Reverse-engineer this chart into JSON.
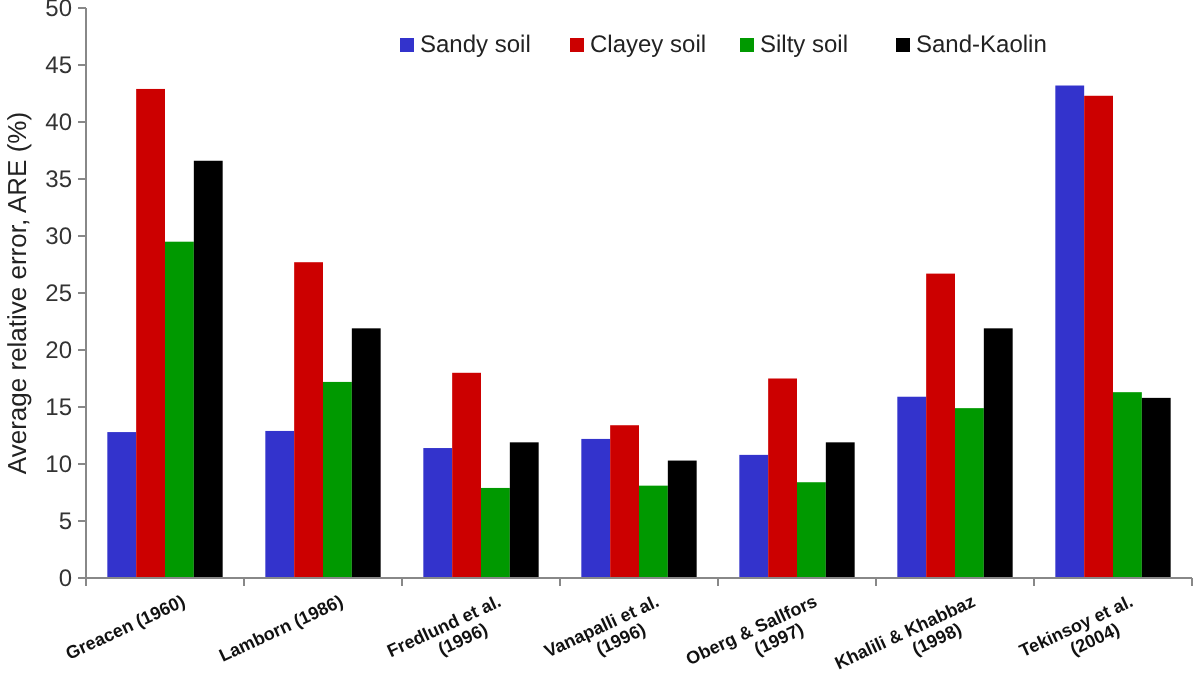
{
  "chart_data": {
    "type": "bar",
    "ylabel": "Average relative error, ARE (%)",
    "categories": [
      "Greacen (1960)",
      "Lamborn (1986)",
      "Fredlund et al.\n(1996)",
      "Vanapalli et al.\n(1996)",
      "Oberg & Sallfors\n(1997)",
      "Khalili & Khabbaz\n(1998)",
      "Tekinsoy et al.\n(2004)"
    ],
    "series": [
      {
        "name": "Sandy soil",
        "color": "#3333cc",
        "values": [
          12.8,
          12.9,
          11.4,
          12.2,
          10.8,
          15.9,
          43.2
        ]
      },
      {
        "name": "Clayey soil",
        "color": "#cc0000",
        "values": [
          42.9,
          27.7,
          18.0,
          13.4,
          17.5,
          26.7,
          42.3
        ]
      },
      {
        "name": "Silty soil",
        "color": "#009900",
        "values": [
          29.5,
          17.2,
          7.9,
          8.1,
          8.4,
          14.9,
          16.3
        ]
      },
      {
        "name": "Sand-Kaolin",
        "color": "#000000",
        "values": [
          36.6,
          21.9,
          11.9,
          10.3,
          11.9,
          21.9,
          15.8
        ]
      }
    ],
    "ylim": [
      0,
      50
    ],
    "yticks": [
      0,
      5,
      10,
      15,
      20,
      25,
      30,
      35,
      40,
      45,
      50
    ],
    "grid": false,
    "legend": "top"
  }
}
